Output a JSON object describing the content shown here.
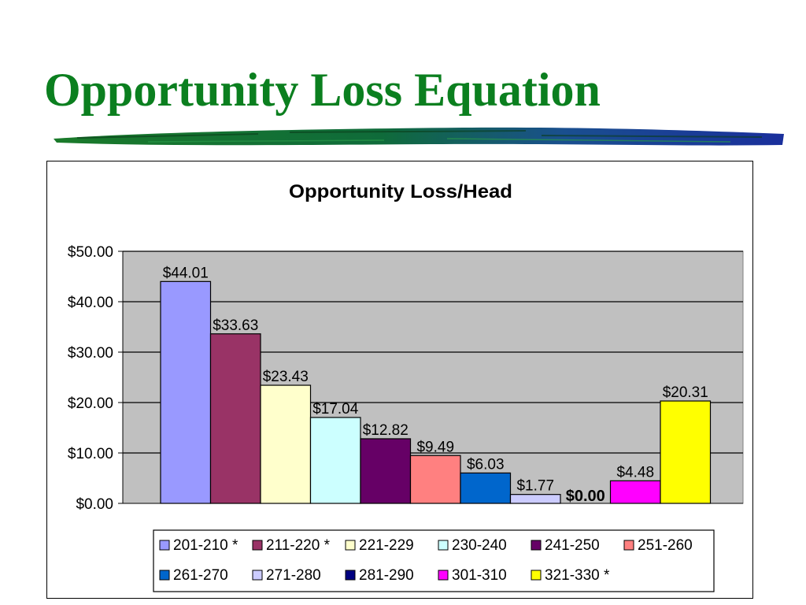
{
  "slide": {
    "title": "Opportunity Loss Equation"
  },
  "colors": {
    "title_green": "#0b7f1f",
    "plot_background": "#c0c0c0"
  },
  "chart_data": {
    "type": "bar",
    "title": "Opportunity Loss/Head",
    "xlabel": "",
    "ylabel": "",
    "ylim": [
      0,
      50
    ],
    "yticks": [
      "$0.00",
      "$10.00",
      "$20.00",
      "$30.00",
      "$40.00",
      "$50.00"
    ],
    "grid": true,
    "legend": "bottom",
    "series": [
      {
        "name": "201-210 *",
        "value": 44.01,
        "label": "$44.01",
        "color": "#9999ff"
      },
      {
        "name": "211-220 *",
        "value": 33.63,
        "label": "$33.63",
        "color": "#993366"
      },
      {
        "name": "221-229",
        "value": 23.43,
        "label": "$23.43",
        "color": "#ffffcc"
      },
      {
        "name": "230-240",
        "value": 17.04,
        "label": "$17.04",
        "color": "#ccffff"
      },
      {
        "name": "241-250",
        "value": 12.82,
        "label": "$12.82",
        "color": "#660066"
      },
      {
        "name": "251-260",
        "value": 9.49,
        "label": "$9.49",
        "color": "#ff8080"
      },
      {
        "name": "261-270",
        "value": 6.03,
        "label": "$6.03",
        "color": "#0066cc"
      },
      {
        "name": "271-280",
        "value": 1.77,
        "label": "$1.77",
        "color": "#ccccff"
      },
      {
        "name": "281-290",
        "value": 0.0,
        "label": "$0.00",
        "color": "#000080"
      },
      {
        "name": "301-310",
        "value": 4.48,
        "label": "$4.48",
        "color": "#ff00ff"
      },
      {
        "name": "321-330 *",
        "value": 20.31,
        "label": "$20.31",
        "color": "#ffff00"
      }
    ]
  }
}
